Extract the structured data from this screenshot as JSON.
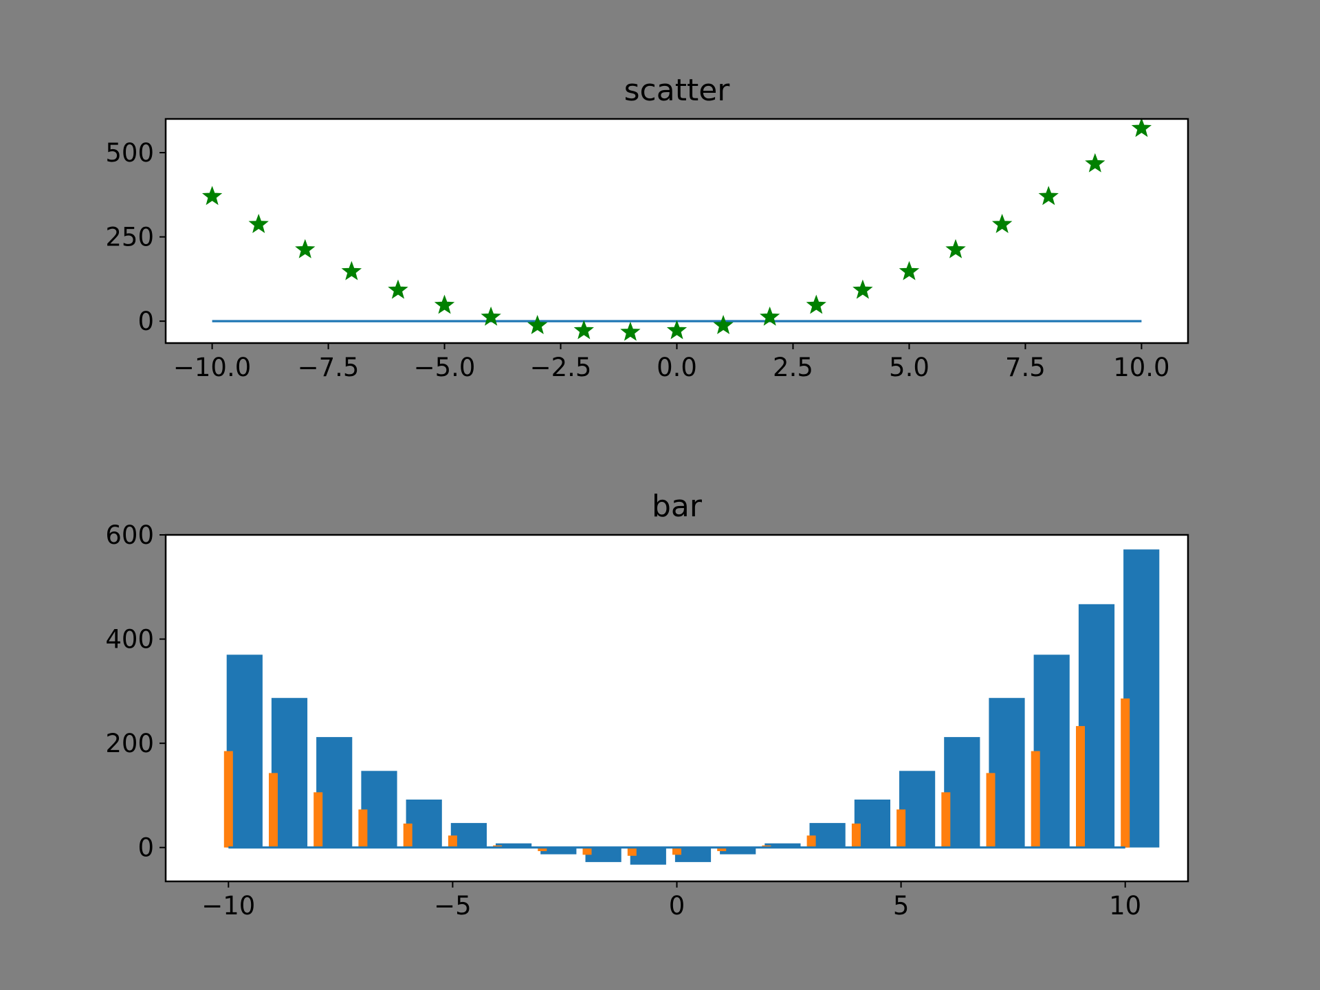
{
  "figure": {
    "background": "#808080"
  },
  "chart_data": [
    {
      "type": "scatter",
      "title": "scatter",
      "xlim": [
        -11,
        11
      ],
      "ylim": [
        -65,
        600
      ],
      "xticks": [
        -10.0,
        -7.5,
        -5.0,
        -2.5,
        0.0,
        2.5,
        5.0,
        7.5,
        10.0
      ],
      "xtick_labels": [
        "−10.0",
        "−7.5",
        "−5.0",
        "−2.5",
        "0.0",
        "2.5",
        "5.0",
        "7.5",
        "10.0"
      ],
      "yticks": [
        0,
        250,
        500
      ],
      "ytick_labels": [
        "0",
        "250",
        "500"
      ],
      "grid": false,
      "series": [
        {
          "kind": "line",
          "color": "#1f77b4",
          "x": [
            -10,
            10
          ],
          "y": [
            0,
            0
          ]
        },
        {
          "kind": "scatter",
          "marker": "star",
          "color": "#008000",
          "x": [
            -10,
            -9,
            -8,
            -7,
            -6,
            -5,
            -4,
            -3,
            -2,
            -1,
            0,
            1,
            2,
            3,
            4,
            5,
            6,
            7,
            8,
            9,
            10
          ],
          "y": [
            370,
            287,
            212,
            147,
            92,
            47,
            12,
            -13,
            -28,
            -33,
            -28,
            -13,
            12,
            47,
            92,
            147,
            212,
            287,
            370,
            467,
            572
          ]
        }
      ]
    },
    {
      "type": "bar",
      "title": "bar",
      "xlim": [
        -11.4,
        11.4
      ],
      "ylim": [
        -65,
        600
      ],
      "xticks": [
        -10,
        -5,
        0,
        5,
        10
      ],
      "xtick_labels": [
        "−10",
        "−5",
        "0",
        "5",
        "10"
      ],
      "yticks": [
        0,
        200,
        400,
        600
      ],
      "ytick_labels": [
        "0",
        "200",
        "400",
        "600"
      ],
      "grid": false,
      "series": [
        {
          "color": "#1f77b4",
          "bar_width": 0.8,
          "x": [
            -9.64,
            -8.64,
            -7.64,
            -6.64,
            -5.64,
            -4.64,
            -3.64,
            -2.64,
            -1.64,
            -0.64,
            0.36,
            1.36,
            2.36,
            3.36,
            4.36,
            5.36,
            6.36,
            7.36,
            8.36,
            9.36,
            10.36
          ],
          "values": [
            370,
            287,
            212,
            147,
            92,
            47,
            8,
            -13,
            -28,
            -33,
            -28,
            -13,
            8,
            47,
            92,
            147,
            212,
            287,
            370,
            467,
            572
          ]
        },
        {
          "color": "#ff7f0e",
          "bar_width": 0.2,
          "x": [
            -10,
            -9,
            -8,
            -7,
            -6,
            -5,
            -4,
            -3,
            -2,
            -1,
            0,
            1,
            2,
            3,
            4,
            5,
            6,
            7,
            8,
            9,
            10
          ],
          "values": [
            185,
            143,
            106,
            73,
            46,
            23,
            4,
            -7,
            -14,
            -16,
            -14,
            -7,
            4,
            23,
            46,
            73,
            106,
            143,
            185,
            233,
            286
          ]
        },
        {
          "kind": "baseline",
          "color": "#1f77b4",
          "x": [
            -10,
            10
          ],
          "y": [
            0,
            0
          ]
        }
      ]
    }
  ]
}
